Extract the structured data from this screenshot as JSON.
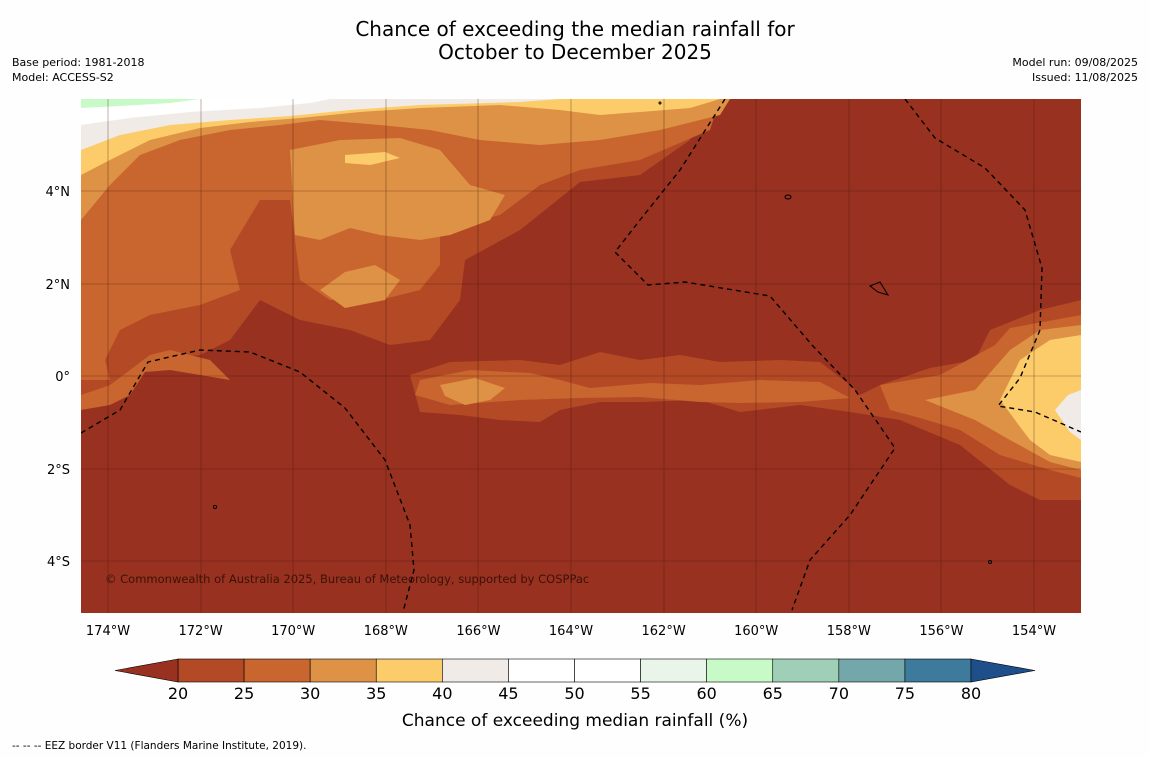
{
  "title": {
    "line1": "Chance of exceeding the median rainfall for",
    "line2": "October to December 2025"
  },
  "info_left": {
    "base_period": "Base period: 1981-2018",
    "model": "Model: ACCESS-S2"
  },
  "info_right": {
    "model_run": "Model run: 09/08/2025",
    "issued": "Issued: 11/08/2025"
  },
  "map": {
    "lat_labels": [
      "4°N",
      "2°N",
      "0°",
      "2°S",
      "4°S"
    ],
    "lon_labels": [
      "174°W",
      "172°W",
      "170°W",
      "168°W",
      "166°W",
      "164°W",
      "162°W",
      "160°W",
      "158°W",
      "156°W",
      "154°W"
    ],
    "copyright": "© Commonwealth of Australia 2025, Bureau of Meteorology, supported by COSPPac",
    "ocean_base_color": "#993121"
  },
  "colorbar": {
    "ticks": [
      "20",
      "25",
      "30",
      "35",
      "40",
      "45",
      "50",
      "55",
      "60",
      "65",
      "70",
      "75",
      "80"
    ],
    "colors": [
      "#b34a25",
      "#c9652e",
      "#de9245",
      "#fdcc6a",
      "#f0ebe6",
      "#ffffff",
      "#ffffff",
      "#e8f5e8",
      "#c8fac8",
      "#9fcfb6",
      "#74a7a9",
      "#3d7a9b"
    ],
    "low_extend_color": "#993121",
    "high_extend_color": "#1e4f8a",
    "label": "Chance of exceeding median rainfall (%)"
  },
  "footer": "--  --  -- EEZ border V11 (Flanders Marine Institute, 2019)."
}
